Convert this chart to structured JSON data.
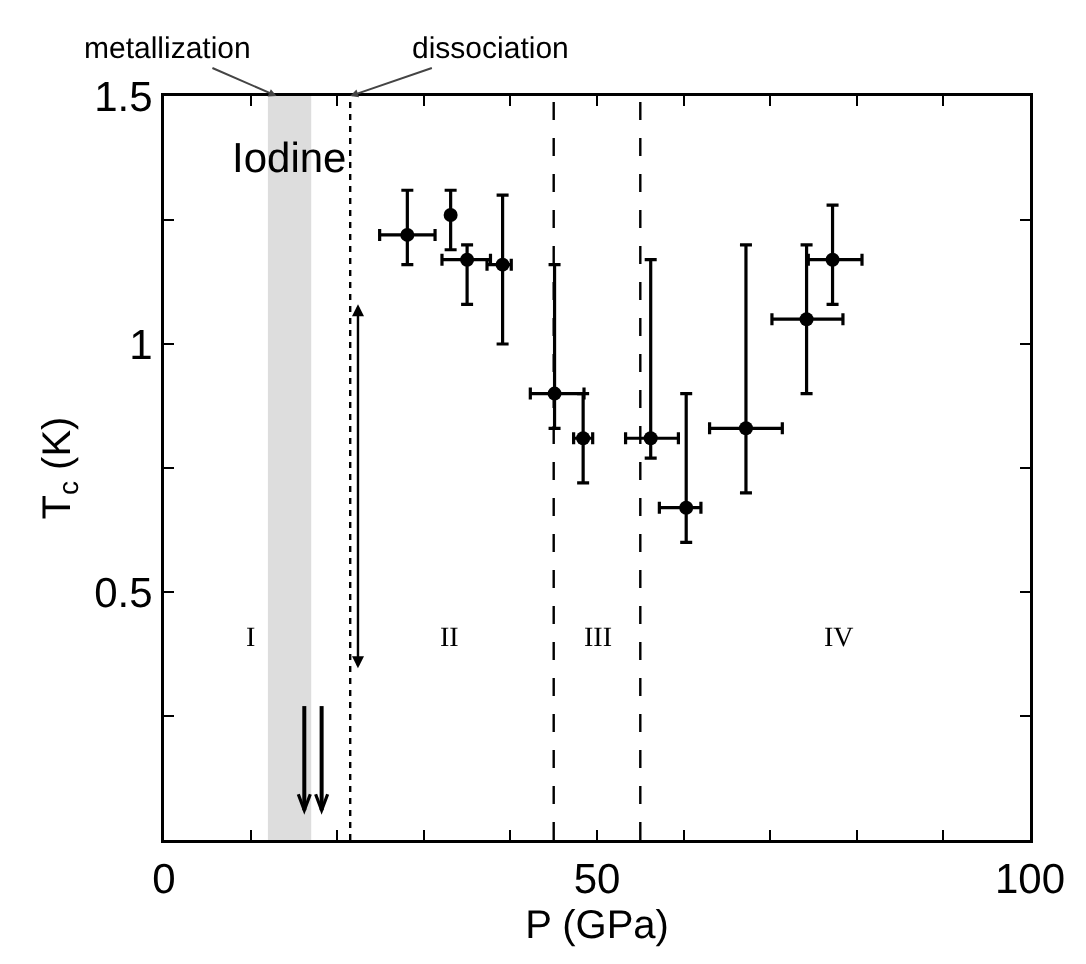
{
  "chart_data": {
    "type": "scatter",
    "xlabel": "P (GPa)",
    "ylabel": "T$_{c}$ (K)",
    "x": [
      28.1,
      33.1,
      35.0,
      39.1,
      45.1,
      48.4,
      56.2,
      60.3,
      67.2,
      74.2,
      77.2
    ],
    "series": [
      {
        "color": "#000000",
        "values": [
          1.22,
          1.26,
          1.17,
          1.16,
          0.9,
          0.81,
          0.81,
          0.67,
          0.83,
          1.05,
          1.17
        ],
        "errors": [
          [
            1.16,
            1.31
          ],
          [
            1.19,
            1.31
          ],
          [
            1.08,
            1.2
          ],
          [
            1.0,
            1.3
          ],
          [
            0.83,
            1.16
          ],
          [
            0.72,
            0.9
          ],
          [
            0.77,
            1.17
          ],
          [
            0.6,
            0.9
          ],
          [
            0.7,
            1.2
          ],
          [
            0.9,
            1.2
          ],
          [
            1.08,
            1.28
          ]
        ],
        "xerrors": [
          [
            24.9,
            31.3
          ],
          null,
          [
            32.1,
            37.7
          ],
          [
            37.3,
            40.1
          ],
          [
            42.3,
            48.5
          ],
          [
            47.3,
            49.5
          ],
          [
            53.3,
            59.4
          ],
          [
            57.2,
            62.0
          ],
          [
            63.0,
            71.4
          ],
          [
            70.2,
            78.4
          ],
          [
            74.4,
            80.6
          ]
        ]
      }
    ],
    "xlim": [
      0,
      100
    ],
    "xticks": [
      0,
      {
        "value": 10,
        "label": null
      },
      {
        "value": 20,
        "label": null
      },
      {
        "value": 30,
        "label": null
      },
      {
        "value": 40,
        "label": null
      },
      50,
      {
        "value": 60,
        "label": null
      },
      {
        "value": 70,
        "label": null
      },
      {
        "value": 80,
        "label": null
      },
      {
        "value": 90,
        "label": null
      },
      100
    ],
    "ylim": [
      0,
      1.5
    ],
    "yticks": [
      {
        "value": 0,
        "label": null
      },
      {
        "value": 0.25,
        "label": null
      },
      0.5,
      {
        "value": 0.75,
        "label": null
      },
      1,
      {
        "value": 1.25,
        "label": null
      },
      1.5
    ],
    "marker": "circle",
    "ref_lines": [
      {
        "axis": "x",
        "value": 21.5,
        "line_style": "dotted",
        "color": "#000000"
      },
      {
        "axis": "x",
        "value": 45,
        "line_style": "dashed",
        "color": "#000000"
      },
      {
        "axis": "x",
        "value": 55,
        "line_style": "dashed",
        "color": "#000000"
      }
    ],
    "bands": [
      {
        "axis": "x",
        "from": 12,
        "to": 17,
        "color": "#dddddd"
      }
    ],
    "annotations": [
      {
        "text": "metallization",
        "x": 13,
        "y": 1.5
      },
      {
        "text": "dissociation",
        "x": 21.5,
        "y": 1.5
      },
      "Iodine",
      "I",
      "II",
      "III",
      "IV"
    ]
  }
}
